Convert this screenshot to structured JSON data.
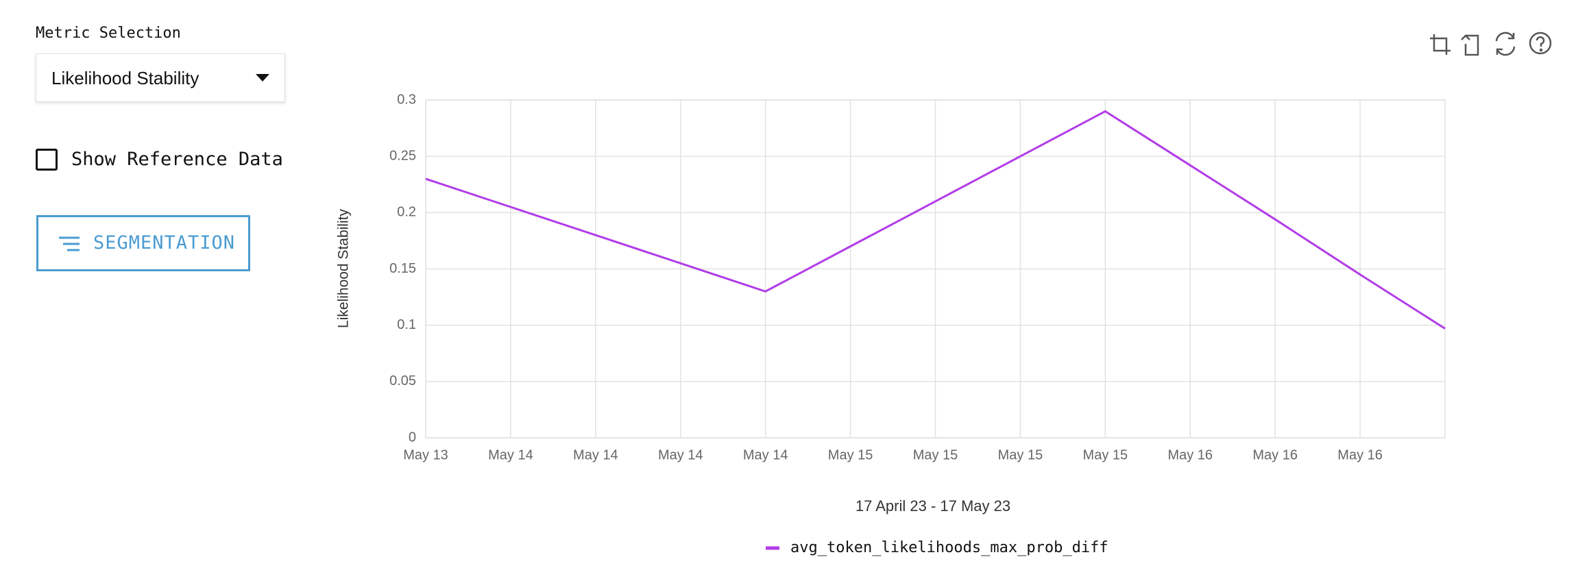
{
  "metric_selection": {
    "label": "Metric Selection",
    "value": "Likelihood Stability"
  },
  "reference_toggle": {
    "label": "Show Reference Data"
  },
  "segmentation_button": {
    "label": "SEGMENTATION"
  },
  "chart_data": {
    "type": "line",
    "ylabel": "Likelihood Stability",
    "xlabel": "17 April 23  - 17 May 23",
    "categories": [
      "May 13",
      "May 14",
      "May 14",
      "May 14",
      "May 14",
      "May 15",
      "May 15",
      "May 15",
      "May 15",
      "May 16",
      "May 16",
      "May 16",
      null
    ],
    "series": [
      {
        "name": "avg_token_likelihoods_max_prob_diff",
        "color": "#b23ce8",
        "values": [
          0.23,
          0.205,
          0.18,
          0.155,
          0.13,
          0.17,
          0.21,
          0.25,
          0.29,
          0.242,
          0.194,
          0.145,
          0.097
        ]
      }
    ],
    "ylim": [
      0,
      0.3
    ],
    "yticks": [
      0,
      0.05,
      0.1,
      0.15,
      0.2,
      0.25,
      0.3
    ],
    "grid": true
  }
}
